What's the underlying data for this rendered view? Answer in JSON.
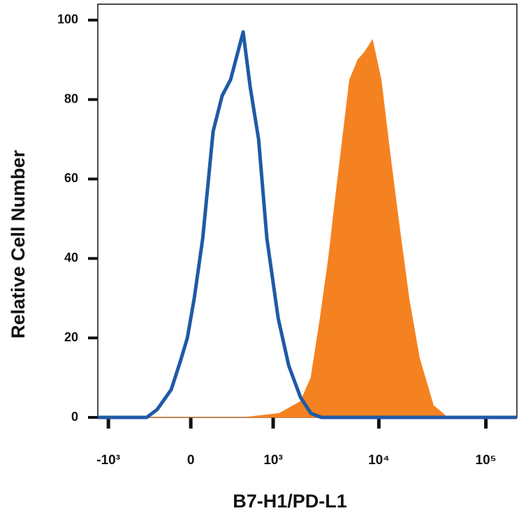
{
  "chart_data": {
    "type": "line",
    "y_label": "Relative Cell Number",
    "x_label": "B7-H1/PD-L1",
    "x_scale": "biexponential",
    "xlim": [
      -1270,
      195000
    ],
    "xticks": [
      {
        "value": -1000,
        "label": "-10³"
      },
      0,
      {
        "value": 1000,
        "label": "10³"
      },
      {
        "value": 10000,
        "label": "10⁴"
      },
      {
        "value": 100000,
        "label": "10⁵"
      }
    ],
    "ylim": [
      0,
      104
    ],
    "yticks": [
      0,
      20,
      40,
      60,
      80,
      100
    ],
    "series": [
      {
        "color": "#f58220",
        "filled": true,
        "x": [
          -1270,
          500,
          1150,
          1840,
          2310,
          2820,
          3380,
          3920,
          4570,
          5330,
          6370,
          7390,
          8720,
          10500,
          12500,
          15200,
          19100,
          23900,
          32300,
          43700,
          195000
        ],
        "values": [
          0,
          0,
          1,
          4,
          10,
          25,
          40,
          55,
          70,
          85,
          90,
          92,
          95,
          85,
          68,
          50,
          30,
          15,
          3,
          0,
          0
        ]
      },
      {
        "color": "#1f5aa6",
        "filled": false,
        "x": [
          -1270,
          -383,
          -275,
          -152,
          -80,
          -26,
          26,
          91,
          175,
          255,
          338,
          483,
          581,
          712,
          866,
          1120,
          1420,
          1840,
          2310,
          2900,
          195000
        ],
        "values": [
          0,
          0,
          2,
          7,
          14,
          20,
          30,
          45,
          72,
          81,
          85,
          97,
          83,
          70,
          45,
          25,
          13,
          5,
          1,
          0,
          0
        ]
      }
    ]
  }
}
